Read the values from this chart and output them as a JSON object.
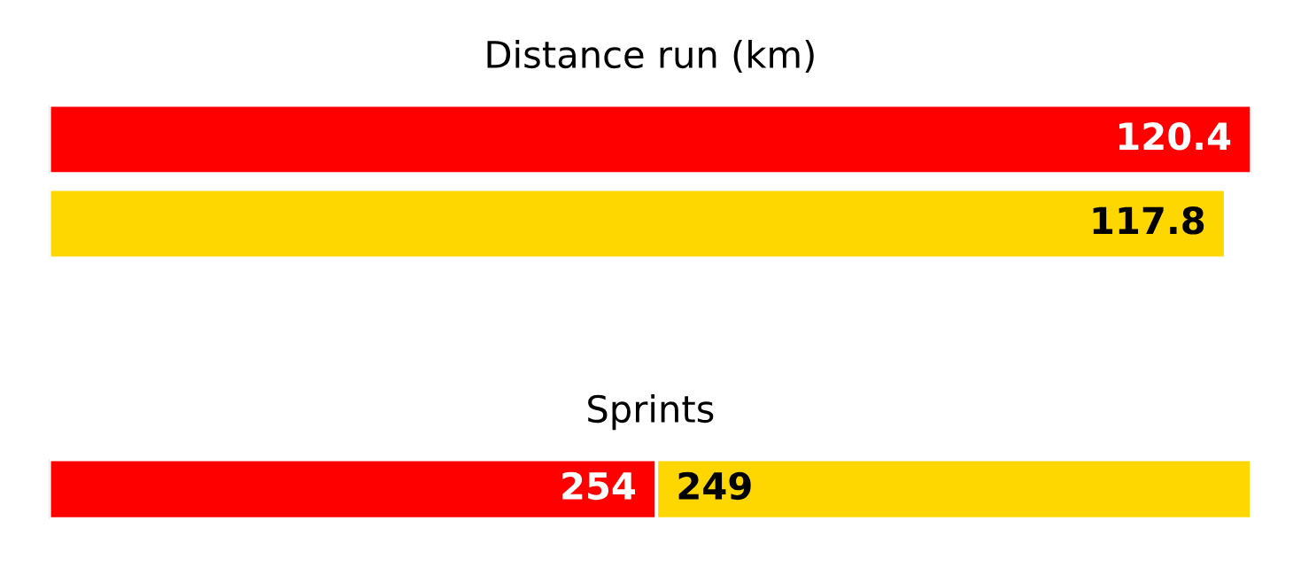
{
  "chart_data": [
    {
      "type": "bar",
      "orientation": "horizontal",
      "title": "Distance run (km)",
      "categories": [
        null,
        null
      ],
      "values": [
        120.4,
        117.8
      ],
      "colors": [
        "#ff0000",
        "#ffd700"
      ],
      "data_labels": true,
      "tick_labels": false,
      "legend": false
    },
    {
      "type": "bar",
      "orientation": "horizontal",
      "stacked": true,
      "title": "Sprints",
      "categories": [
        null
      ],
      "series": [
        {
          "color": "#ff0000",
          "values": [
            254
          ]
        },
        {
          "color": "#ffd700",
          "values": [
            249
          ]
        }
      ],
      "data_labels": true,
      "tick_labels": false,
      "legend": false
    }
  ]
}
